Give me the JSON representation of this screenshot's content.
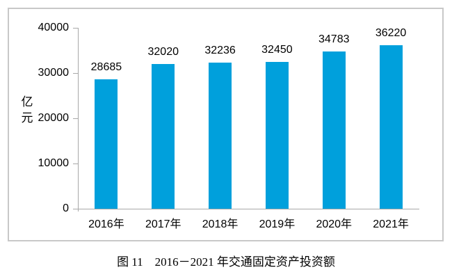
{
  "figure": {
    "caption": "图 11　2016－2021 年交通固定资产投资额"
  },
  "chart_data": {
    "type": "bar",
    "title": "图 11　2016－2021 年交通固定资产投资额",
    "categories": [
      "2016年",
      "2017年",
      "2018年",
      "2019年",
      "2020年",
      "2021年"
    ],
    "values": [
      28685,
      32020,
      32236,
      32450,
      34783,
      36220
    ],
    "xlabel": "",
    "ylabel": "亿元",
    "ylim": [
      0,
      40000
    ],
    "yticks": [
      0,
      10000,
      20000,
      30000,
      40000
    ],
    "grid": false,
    "legend": "none",
    "data_labels": true,
    "bar_color": "#00A0DC"
  },
  "colors": {
    "bar": "#00A0DC",
    "axis_line": "#a8a8a8",
    "chart_border": "#c8c8c8",
    "text": "#000000",
    "background": "#ffffff"
  }
}
